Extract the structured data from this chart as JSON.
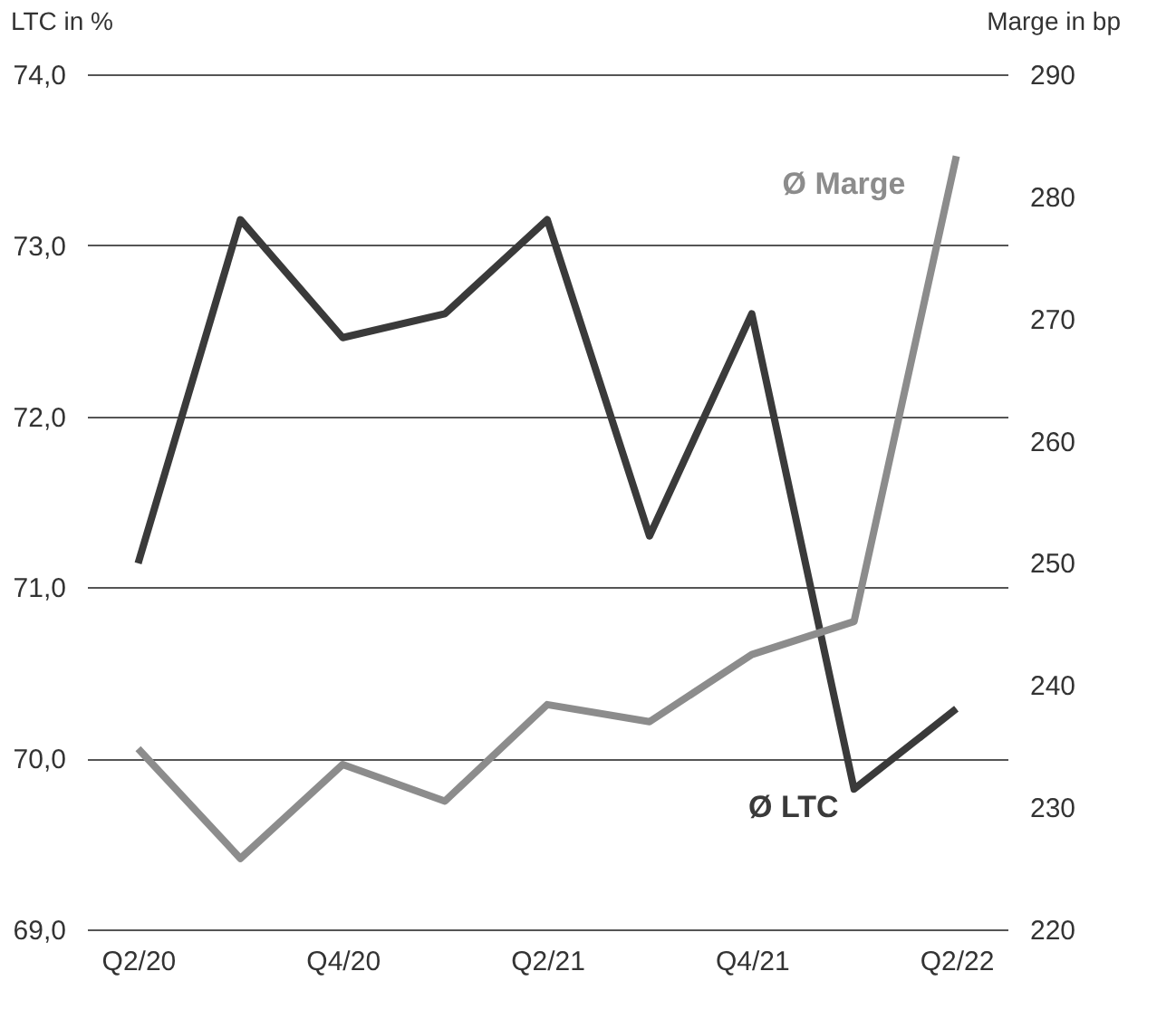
{
  "chart_data": {
    "type": "line",
    "categories": [
      "Q2/20",
      null,
      "Q4/20",
      null,
      "Q2/21",
      null,
      "Q4/21",
      null,
      "Q2/22"
    ],
    "series": [
      {
        "name": "Ø LTC",
        "color": "#3a3a3a",
        "values": [
          71.14,
          73.15,
          72.46,
          72.6,
          73.15,
          71.3,
          72.6,
          69.82,
          70.29
        ]
      },
      {
        "name": "Ø Marge",
        "color": "#8c8c8c",
        "axis": "y2",
        "values": [
          234.8,
          225.8,
          233.5,
          230.5,
          238.4,
          237.0,
          242.5,
          245.2,
          283.3
        ]
      }
    ],
    "ylabel": "LTC in %",
    "y2label": "Marge in bp",
    "ylim": [
      69,
      74
    ],
    "yticks": [
      {
        "value": 69,
        "label": "69,0"
      },
      {
        "value": 70,
        "label": "70,0"
      },
      {
        "value": 71,
        "label": "71,0"
      },
      {
        "value": 72,
        "label": "72,0"
      },
      {
        "value": 73,
        "label": "73,0"
      },
      {
        "value": 74,
        "label": "74,0"
      }
    ],
    "y2lim": [
      220,
      290
    ],
    "y2ticks": [
      220,
      230,
      240,
      250,
      260,
      270,
      280,
      290
    ],
    "grid": "y",
    "marker": "none",
    "line_style": "solid"
  }
}
